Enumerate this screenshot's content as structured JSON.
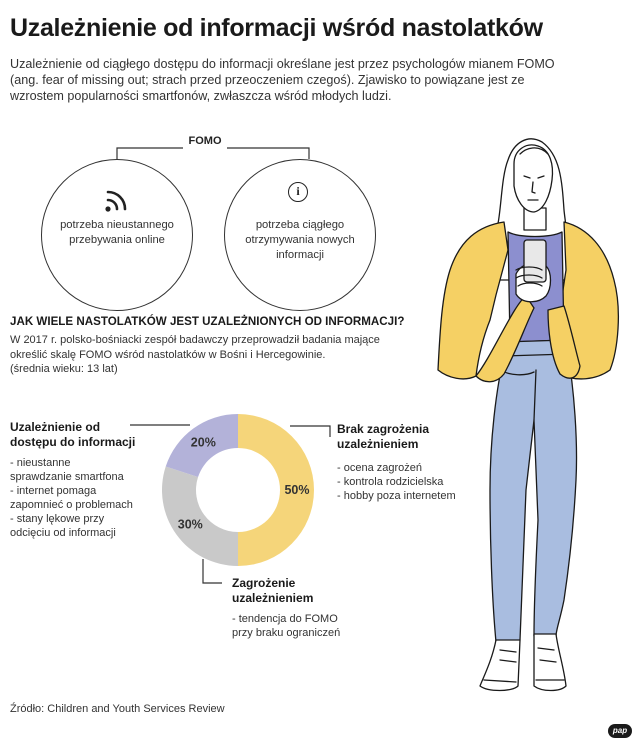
{
  "title": "Uzależnienie od informacji wśród nastolatków",
  "intro": "Uzależnienie od ciągłego dostępu do informacji określane jest przez psychologów mianem FOMO (ang. fear of missing out; strach przed przeoczeniem czegoś). Zjawisko to powiązane jest ze wzrostem popularności smartfonów, zwłaszcza wśród młodych ludzi.",
  "fomo": {
    "label": "FOMO",
    "left_circle": {
      "icon": "wifi-signal-icon",
      "lines": [
        "potrzeba nieustannego",
        "przebywania online"
      ]
    },
    "right_circle": {
      "icon": "info-icon",
      "icon_glyph": "i",
      "lines": [
        "potrzeba ciągłego",
        "otrzymywania nowych",
        "informacji"
      ]
    }
  },
  "section": {
    "heading": "JAK WIELE NASTOLATKÓW JEST UZALEŻNIONYCH OD INFORMACJI?",
    "desc_lines": [
      "W 2017 r. polsko-bośniacki zespół badawczy przeprowadził badania mające",
      "określić skalę FOMO wśród nastolatków w Bośni i Hercegowinie.",
      "(średnia wieku: 13 lat)"
    ]
  },
  "chart_data": {
    "type": "pie",
    "donut": true,
    "slices": [
      {
        "label": "Brak zagrożenia uzależnieniem",
        "value": 50,
        "display": "50%",
        "color": "#f5d57a"
      },
      {
        "label": "Zagrożenie uzależnieniem",
        "value": 30,
        "display": "30%",
        "color": "#c9c9c9"
      },
      {
        "label": "Uzależnienie od dostępu do informacji",
        "value": 20,
        "display": "20%",
        "color": "#b3b2d9"
      }
    ]
  },
  "segments": {
    "addicted": {
      "title_lines": [
        "Uzależnienie od",
        "dostępu do informacji"
      ],
      "items": [
        [
          "- nieustanne",
          "sprawdzanie smartfona"
        ],
        [
          "- internet pomaga",
          "zapomnieć o problemach"
        ],
        [
          "- stany lękowe przy",
          "odcięciu od informacji"
        ]
      ]
    },
    "no_risk": {
      "title_lines": [
        "Brak zagrożenia",
        "uzależnieniem"
      ],
      "items": [
        [
          "- ocena zagrożeń"
        ],
        [
          "- kontrola rodzicielska"
        ],
        [
          "- hobby poza internetem"
        ]
      ]
    },
    "at_risk": {
      "title_lines": [
        "Zagrożenie",
        "uzależnieniem"
      ],
      "items": [
        [
          "- tendencja do FOMO",
          "przy braku ograniczeń"
        ]
      ]
    }
  },
  "source": "Źródło: Children and Youth Services Review",
  "logo": "pap",
  "colors": {
    "jacket": "#f5d064",
    "jeans": "#a9bde0",
    "shirt": "#8c8fcf",
    "donut_yellow": "#f5d57a",
    "donut_gray": "#c9c9c9",
    "donut_purple": "#b3b2d9"
  }
}
